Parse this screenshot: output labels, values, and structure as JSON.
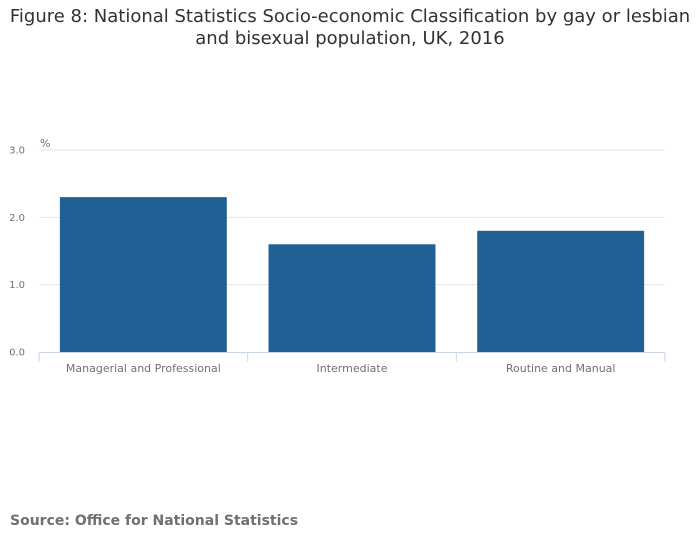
{
  "title_line1": "Figure 8: National Statistics Socio-economic Classification by gay or lesbian",
  "title_line2": "and bisexual population, UK, 2016",
  "source": "Source: Office for National Statistics",
  "colors": {
    "bar": "#206095",
    "grid": "#e6e6e6",
    "axis": "#ccd6eb",
    "text": "#707071"
  },
  "chart_data": {
    "type": "bar",
    "title": "Figure 8: National Statistics Socio-economic Classification by gay or lesbian and bisexual population, UK, 2016",
    "categories": [
      "Managerial and Professional",
      "Intermediate",
      "Routine and Manual"
    ],
    "values": [
      2.3,
      1.6,
      1.8
    ],
    "yunit": "%",
    "xlabel": "",
    "ylabel": "",
    "ylim": [
      0,
      3
    ],
    "yticks": [
      "0.0",
      "1.0",
      "2.0",
      "3.0"
    ],
    "grid": true,
    "legend": "none"
  }
}
